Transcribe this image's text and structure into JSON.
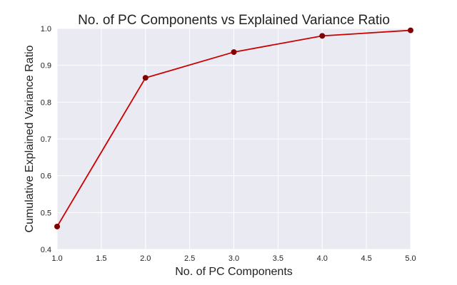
{
  "chart_data": {
    "type": "line",
    "title": "No. of PC Components vs Explained Variance Ratio",
    "xlabel": "No. of PC Components",
    "ylabel": "Cumulative Explained Variance Ratio",
    "xlim": [
      1.0,
      5.0
    ],
    "ylim": [
      0.4,
      1.0
    ],
    "x_ticks": [
      "1.0",
      "1.5",
      "2.0",
      "2.5",
      "3.0",
      "3.5",
      "4.0",
      "4.5",
      "5.0"
    ],
    "y_ticks": [
      "0.4",
      "0.5",
      "0.6",
      "0.7",
      "0.8",
      "0.9",
      "1.0"
    ],
    "grid": true,
    "series": [
      {
        "x": [
          1,
          2,
          3,
          4,
          5
        ],
        "values": [
          0.462,
          0.866,
          0.936,
          0.98,
          0.995
        ],
        "line_color": "#cc0000",
        "marker_color": "#800000"
      }
    ],
    "background_color": "#eaeaf2"
  }
}
